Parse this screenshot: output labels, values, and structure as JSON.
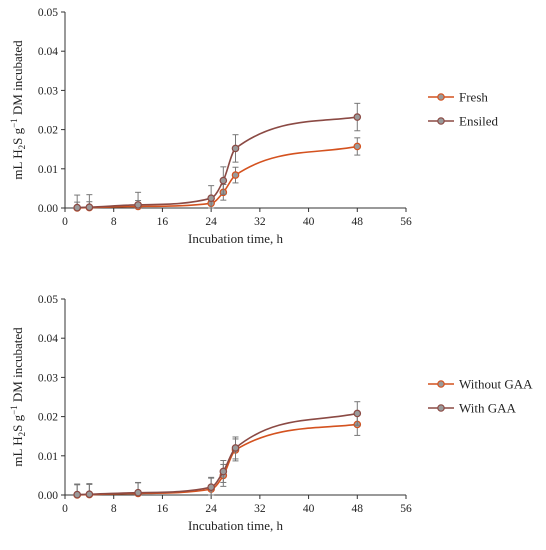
{
  "chart_data": [
    {
      "type": "line",
      "xlabel": "Incubation time, h",
      "ylabel": "mL H2S g−1 DM incubated",
      "ylabel_parts": {
        "pre": "mL H",
        "sub": "2",
        "mid": "S g",
        "sup": "−1",
        "post": " DM incubated"
      },
      "xlim": [
        0,
        56
      ],
      "ylim": [
        0,
        0.05
      ],
      "xticks": [
        "0",
        "8",
        "16",
        "24",
        "32",
        "40",
        "48",
        "56"
      ],
      "yticks": [
        "0.00",
        "0.01",
        "0.02",
        "0.03",
        "0.04",
        "0.05"
      ],
      "grid": false,
      "legend_position": "right",
      "x": [
        2,
        4,
        12,
        24,
        26,
        28,
        48
      ],
      "series": [
        {
          "name": "Fresh",
          "color": "#d4521f",
          "values": [
            0.0,
            0.0001,
            0.0004,
            0.0012,
            0.004,
            0.0084,
            0.0157
          ],
          "errors": [
            0.0015,
            0.0015,
            0.0015,
            0.0015,
            0.002,
            0.002,
            0.0022
          ]
        },
        {
          "name": "Ensiled",
          "color": "#8b4a44",
          "values": [
            0.0001,
            0.0002,
            0.0008,
            0.0025,
            0.007,
            0.0152,
            0.0232
          ],
          "errors": [
            0.0032,
            0.0032,
            0.0032,
            0.0032,
            0.0035,
            0.0035,
            0.0035
          ]
        }
      ]
    },
    {
      "type": "line",
      "xlabel": "Incubation time, h",
      "ylabel": "mL H2S g−1 DM incubated",
      "ylabel_parts": {
        "pre": "mL H",
        "sub": "2",
        "mid": "S g",
        "sup": "−1",
        "post": " DM incubated"
      },
      "xlim": [
        0,
        56
      ],
      "ylim": [
        0,
        0.05
      ],
      "xticks": [
        "0",
        "8",
        "16",
        "24",
        "32",
        "40",
        "48",
        "56"
      ],
      "yticks": [
        "0.00",
        "0.01",
        "0.02",
        "0.03",
        "0.04",
        "0.05"
      ],
      "grid": false,
      "legend_position": "right",
      "x": [
        2,
        4,
        12,
        24,
        26,
        28,
        48
      ],
      "series": [
        {
          "name": "Without GAA",
          "color": "#d4521f",
          "values": [
            0.0,
            0.0001,
            0.0004,
            0.0015,
            0.005,
            0.0115,
            0.018
          ],
          "errors": [
            0.0028,
            0.0028,
            0.0028,
            0.0028,
            0.0028,
            0.0028,
            0.0028
          ]
        },
        {
          "name": "With GAA",
          "color": "#8b4a44",
          "values": [
            0.0001,
            0.0002,
            0.0006,
            0.002,
            0.006,
            0.012,
            0.0208
          ],
          "errors": [
            0.0025,
            0.0025,
            0.0025,
            0.0025,
            0.0028,
            0.0028,
            0.003
          ]
        }
      ]
    }
  ]
}
